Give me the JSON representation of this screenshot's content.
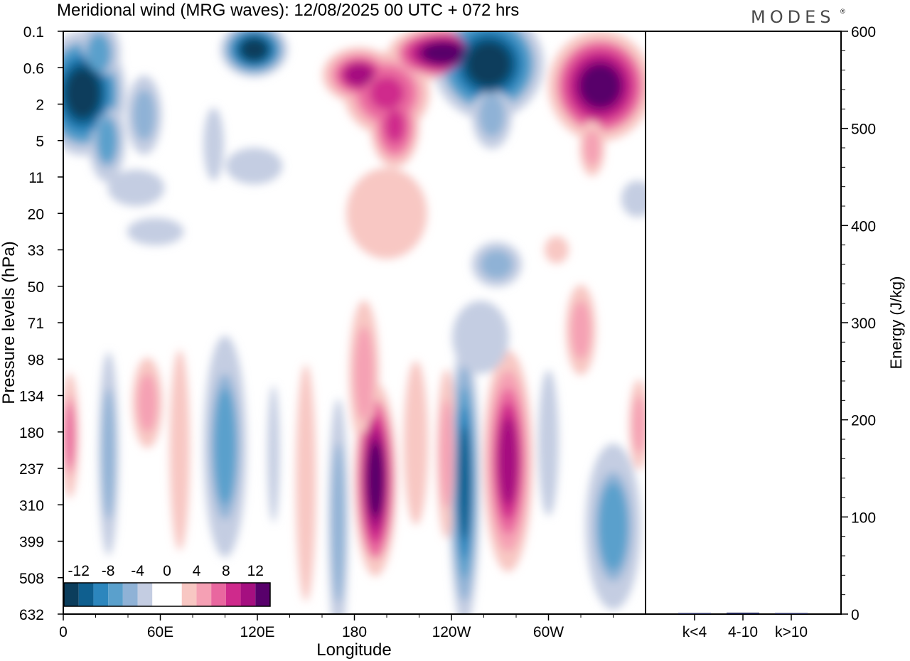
{
  "title": "Meridional wind (MRG waves):  12/08/2025  00 UTC  + 072 hrs",
  "brand": "MODES",
  "brand_mark": "®",
  "chart_data": [
    {
      "type": "heatmap",
      "title": "Meridional wind (MRG waves):  12/08/2025  00 UTC  + 072 hrs",
      "xlabel": "Longitude",
      "ylabel": "Pressure levels (hPa)",
      "x_range_deg": [
        0,
        360
      ],
      "x_ticks": [
        {
          "deg": 0,
          "label": "0"
        },
        {
          "deg": 60,
          "label": "60E"
        },
        {
          "deg": 120,
          "label": "120E"
        },
        {
          "deg": 180,
          "label": "180"
        },
        {
          "deg": 240,
          "label": "120W"
        },
        {
          "deg": 300,
          "label": "60W"
        }
      ],
      "y_levels_hPa": [
        "0.1",
        "0.6",
        "2",
        "5",
        "11",
        "20",
        "33",
        "50",
        "71",
        "98",
        "134",
        "180",
        "237",
        "310",
        "399",
        "508",
        "632"
      ],
      "colorbar": {
        "tick_labels": [
          "-12",
          "-8",
          "-4",
          "0",
          "4",
          "8",
          "12"
        ],
        "levels": [
          -14,
          -12,
          -10,
          -8,
          -6,
          -4,
          -2,
          2,
          4,
          6,
          8,
          10,
          12,
          14
        ],
        "colors": [
          "#0b3d5c",
          "#0f5f8f",
          "#2c86bd",
          "#5aa0cc",
          "#8fb2d6",
          "#c4cde2",
          "#ffffff",
          "#ffffff",
          "#f8c7c3",
          "#f5a0b4",
          "#e9679f",
          "#cf2a8c",
          "#a50f80",
          "#58006b"
        ]
      },
      "features": [
        {
          "lon": 12,
          "lev": 1.7,
          "value": -14,
          "rx": 14,
          "ry": 0.9
        },
        {
          "lon": 22,
          "lev": 0.6,
          "value": -8,
          "rx": 7,
          "ry": 0.5
        },
        {
          "lon": 27,
          "lev": 3.0,
          "value": -8,
          "rx": 6,
          "ry": 0.6
        },
        {
          "lon": 50,
          "lev": 2.3,
          "value": -6,
          "rx": 7,
          "ry": 0.7
        },
        {
          "lon": 93,
          "lev": 3.1,
          "value": -4,
          "rx": 5,
          "ry": 0.8
        },
        {
          "lon": 118,
          "lev": 0.5,
          "value": -14,
          "rx": 11,
          "ry": 0.4
        },
        {
          "lon": 183,
          "lev": 1.2,
          "value": 12,
          "rx": 12,
          "ry": 0.4
        },
        {
          "lon": 200,
          "lev": 1.7,
          "value": 10,
          "rx": 14,
          "ry": 0.6
        },
        {
          "lon": 205,
          "lev": 2.6,
          "value": 10,
          "rx": 8,
          "ry": 0.6
        },
        {
          "lon": 235,
          "lev": 0.6,
          "value": 14,
          "rx": 18,
          "ry": 0.4
        },
        {
          "lon": 263,
          "lev": 0.9,
          "value": -14,
          "rx": 18,
          "ry": 0.8
        },
        {
          "lon": 265,
          "lev": 2.3,
          "value": -6,
          "rx": 8,
          "ry": 0.6
        },
        {
          "lon": 332,
          "lev": 1.5,
          "value": 14,
          "rx": 17,
          "ry": 0.8
        },
        {
          "lon": 327,
          "lev": 3.2,
          "value": 6,
          "rx": 5,
          "ry": 0.5
        },
        {
          "lon": 200,
          "lev": 5.0,
          "value": 4,
          "rx": 20,
          "ry": 1.0
        },
        {
          "lon": 45,
          "lev": 4.3,
          "value": -4,
          "rx": 14,
          "ry": 0.4
        },
        {
          "lon": 118,
          "lev": 3.7,
          "value": -4,
          "rx": 14,
          "ry": 0.4
        },
        {
          "lon": 57,
          "lev": 5.5,
          "value": -4,
          "rx": 14,
          "ry": 0.3
        },
        {
          "lon": 355,
          "lev": 4.6,
          "value": -4,
          "rx": 8,
          "ry": 0.4
        },
        {
          "lon": 268,
          "lev": 6.4,
          "value": -6,
          "rx": 10,
          "ry": 0.4
        },
        {
          "lon": 305,
          "lev": 6.0,
          "value": 4,
          "rx": 6,
          "ry": 0.3
        },
        {
          "lon": 4,
          "lev": 11.1,
          "value": 8,
          "rx": 3,
          "ry": 0.9
        },
        {
          "lon": 28,
          "lev": 11.6,
          "value": -6,
          "rx": 4,
          "ry": 1.8
        },
        {
          "lon": 52,
          "lev": 10.2,
          "value": 6,
          "rx": 6,
          "ry": 0.8
        },
        {
          "lon": 72,
          "lev": 11.5,
          "value": 4,
          "rx": 5,
          "ry": 2.2
        },
        {
          "lon": 100,
          "lev": 11.4,
          "value": -8,
          "rx": 7,
          "ry": 1.6
        },
        {
          "lon": 130,
          "lev": 11.6,
          "value": -4,
          "rx": 3,
          "ry": 1.5
        },
        {
          "lon": 150,
          "lev": 12.4,
          "value": 4,
          "rx": 5,
          "ry": 2.6
        },
        {
          "lon": 170,
          "lev": 13.5,
          "value": -6,
          "rx": 4,
          "ry": 2.2
        },
        {
          "lon": 186,
          "lev": 9.4,
          "value": 6,
          "rx": 6,
          "ry": 1.3
        },
        {
          "lon": 193,
          "lev": 12.3,
          "value": 14,
          "rx": 7,
          "ry": 1.4
        },
        {
          "lon": 218,
          "lev": 11.3,
          "value": 4,
          "rx": 6,
          "ry": 1.8
        },
        {
          "lon": 237,
          "lev": 11.6,
          "value": 6,
          "rx": 4,
          "ry": 1.5
        },
        {
          "lon": 248,
          "lev": 12.4,
          "value": -12,
          "rx": 5,
          "ry": 2.1
        },
        {
          "lon": 275,
          "lev": 11.8,
          "value": 12,
          "rx": 8,
          "ry": 1.6
        },
        {
          "lon": 300,
          "lev": 11.3,
          "value": -4,
          "rx": 5,
          "ry": 1.6
        },
        {
          "lon": 340,
          "lev": 13.6,
          "value": -8,
          "rx": 9,
          "ry": 1.2
        },
        {
          "lon": 320,
          "lev": 8.2,
          "value": 6,
          "rx": 6,
          "ry": 0.8
        },
        {
          "lon": 258,
          "lev": 8.4,
          "value": -4,
          "rx": 14,
          "ry": 0.8
        },
        {
          "lon": 356,
          "lev": 10.8,
          "value": 6,
          "rx": 4,
          "ry": 0.8
        }
      ]
    },
    {
      "type": "bar",
      "categories": [
        "k<4",
        "4-10",
        "k>10"
      ],
      "values": [
        0.5,
        1.5,
        0.3
      ],
      "ylabel": "Energy (J/kg)",
      "ylim": [
        0,
        600
      ],
      "y_ticks": [
        "0",
        "100",
        "200",
        "300",
        "400",
        "500",
        "600"
      ]
    }
  ]
}
